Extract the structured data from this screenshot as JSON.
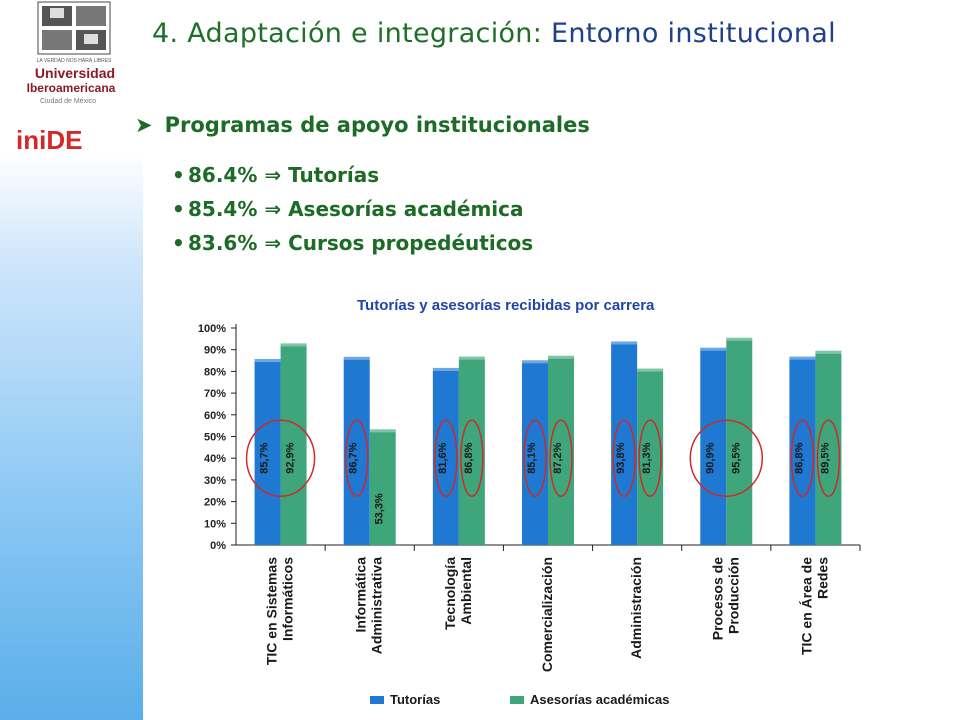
{
  "slide": {
    "title_part1": "4. Adaptación e integración:",
    "title_part2": "Entorno institucional",
    "heading": "Programas de apoyo institucionales",
    "bullets": [
      "86.4% ⇒ Tutorías",
      "85.4% ⇒ Asesorías académica",
      "83.6% ⇒ Cursos propedéuticos"
    ]
  },
  "logos": {
    "university_motto": "LA VERDAD NOS HARÁ LIBRES",
    "university_line1": "Universidad",
    "university_line2": "Iberoamericana",
    "university_line3": "Ciudad de México",
    "inide": "iniDE"
  },
  "colors": {
    "tutorias": "#1f78d1",
    "asesorias": "#3ea67a",
    "circle": "#cc2b2b",
    "title_green": "#1f6f2a",
    "title_blue": "#203f8c"
  },
  "chart_data": {
    "type": "bar",
    "title": "Tutorías y asesorías recibidas por carrera",
    "categories": [
      [
        "TIC en Sistemas",
        "Informáticos"
      ],
      [
        "Informática",
        "Administrativa"
      ],
      [
        "Tecnología",
        "Ambiental"
      ],
      [
        "Comercialización"
      ],
      [
        "Administración"
      ],
      [
        "Procesos de",
        "Producción"
      ],
      [
        "TIC en Área de",
        "Redes"
      ]
    ],
    "series": [
      {
        "name": "Tutorías",
        "values": [
          85.7,
          86.7,
          81.6,
          85.1,
          93.8,
          90.9,
          86.8
        ],
        "labels": [
          "85,7%",
          "86,7%",
          "81,6%",
          "85,1%",
          "93,8%",
          "90,9%",
          "86,8%"
        ]
      },
      {
        "name": "Asesorías académicas",
        "values": [
          92.9,
          53.3,
          86.8,
          87.2,
          81.3,
          95.5,
          89.5
        ],
        "labels": [
          "92,9%",
          "53,3%",
          "86,8%",
          "87,2%",
          "81,3%",
          "95,5%",
          "89,5%"
        ]
      }
    ],
    "yticks": [
      "0%",
      "10%",
      "20%",
      "30%",
      "40%",
      "50%",
      "60%",
      "70%",
      "80%",
      "90%",
      "100%"
    ],
    "ylim": [
      0,
      100
    ],
    "legend_position": "bottom"
  }
}
